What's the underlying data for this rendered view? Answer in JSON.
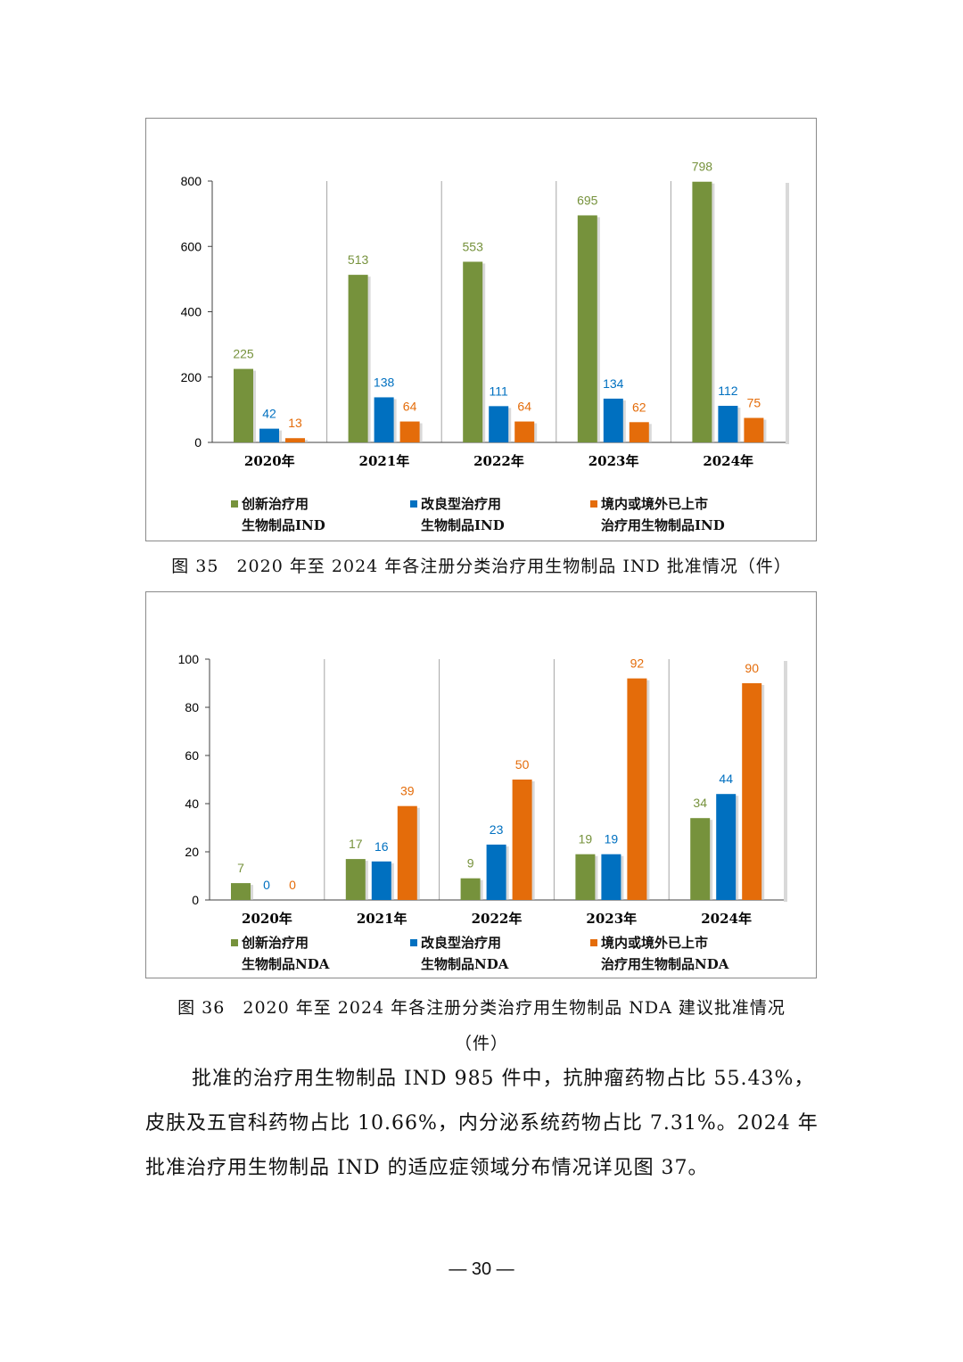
{
  "chart_data": [
    {
      "type": "bar",
      "categories": [
        "2020年",
        "2021年",
        "2022年",
        "2023年",
        "2024年"
      ],
      "series": [
        {
          "name": "创新治疗用生物制品IND",
          "legend_lines": [
            "创新治疗用",
            "生物制品IND"
          ],
          "color": "#76923c",
          "values": [
            225,
            513,
            553,
            695,
            798
          ]
        },
        {
          "name": "改良型治疗用生物制品IND",
          "legend_lines": [
            "改良型治疗用",
            "生物制品IND"
          ],
          "color": "#0070c0",
          "values": [
            42,
            138,
            111,
            134,
            112
          ]
        },
        {
          "name": "境内或境外已上市治疗用生物制品IND",
          "legend_lines": [
            "境内或境外已上市",
            "治疗用生物制品IND"
          ],
          "color": "#e46c0a",
          "values": [
            13,
            64,
            64,
            62,
            75
          ]
        }
      ],
      "ylim": [
        0,
        800
      ],
      "yticks": [
        0,
        200,
        400,
        600,
        800
      ],
      "grid": "vertical category separators",
      "legend": "bottom"
    },
    {
      "type": "bar",
      "categories": [
        "2020年",
        "2021年",
        "2022年",
        "2023年",
        "2024年"
      ],
      "series": [
        {
          "name": "创新治疗用生物制品NDA",
          "legend_lines": [
            "创新治疗用",
            "生物制品NDA"
          ],
          "color": "#76923c",
          "values": [
            7,
            17,
            9,
            19,
            34
          ]
        },
        {
          "name": "改良型治疗用生物制品NDA",
          "legend_lines": [
            "改良型治疗用",
            "生物制品NDA"
          ],
          "color": "#0070c0",
          "values": [
            0,
            16,
            23,
            19,
            44
          ]
        },
        {
          "name": "境内或境外已上市治疗用生物制品NDA",
          "legend_lines": [
            "境内或境外已上市",
            "治疗用生物制品NDA"
          ],
          "color": "#e46c0a",
          "values": [
            0,
            39,
            50,
            92,
            90
          ]
        }
      ],
      "ylim": [
        0,
        100
      ],
      "yticks": [
        0,
        20,
        40,
        60,
        80,
        100
      ],
      "grid": "vertical category separators",
      "legend": "bottom"
    }
  ],
  "captions": {
    "fig35": "图 35　2020 年至 2024 年各注册分类治疗用生物制品 IND 批准情况（件）",
    "fig36": "图 36　2020 年至 2024 年各注册分类治疗用生物制品 NDA 建议批准情况",
    "fig36_sub": "（件）"
  },
  "body_text": {
    "para1": "批准的治疗用生物制品 IND 985 件中，抗肿瘤药物占比 55.43%，皮肤及五官科药物占比 10.66%，内分泌系统药物占比 7.31%。2024 年批准治疗用生物制品 IND 的适应症领域分布情况详见图 37。"
  },
  "page_number": "— 30 —"
}
